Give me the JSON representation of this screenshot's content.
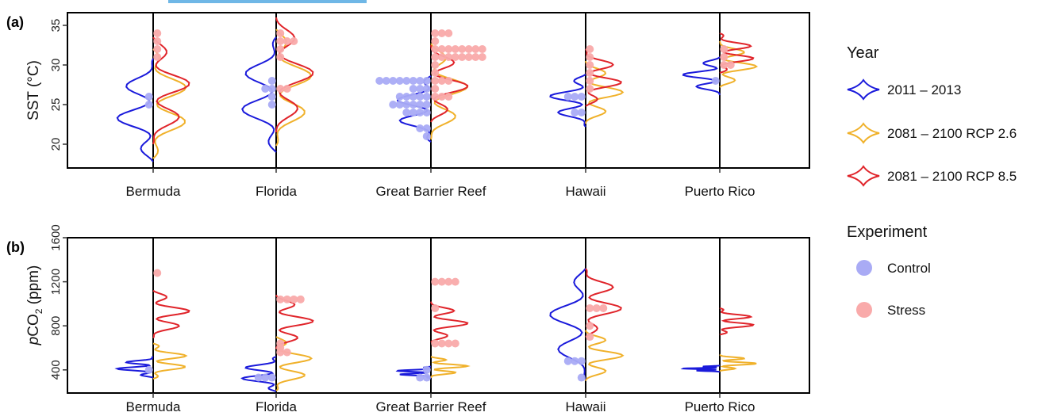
{
  "panels": [
    {
      "label": "(a)",
      "ylabel_main": "SST (°C)",
      "ylabel_sub": "",
      "ylabel_prefix": "",
      "ylim": [
        17,
        36.6
      ],
      "yticks": [
        20,
        25,
        30,
        35
      ],
      "ytick_labels": [
        "20",
        "25",
        "30",
        "35"
      ]
    },
    {
      "label": "(b)",
      "ylabel_prefix": "p",
      "ylabel_main": "CO",
      "ylabel_sub": "2",
      "ylabel_suffix": " (ppm)",
      "ylim": [
        190,
        1600
      ],
      "yticks": [
        400,
        800,
        1200,
        1600
      ],
      "ytick_labels": [
        "400",
        "800",
        "1200",
        "1600"
      ]
    }
  ],
  "legend": {
    "year_title": "Year",
    "year_items": [
      {
        "label": "2011 – 2013",
        "color": "#1a1adb"
      },
      {
        "label": "2081 – 2100 RCP 2.6",
        "color": "#f0b12a"
      },
      {
        "label": "2081 – 2100 RCP 8.5",
        "color": "#e0242a"
      }
    ],
    "experiment_title": "Experiment",
    "experiment_items": [
      {
        "label": "Control",
        "color": "#a9abf5"
      },
      {
        "label": "Stress",
        "color": "#f9aaaa"
      }
    ]
  },
  "chart_data": [
    {
      "type": "violin",
      "panel": "(a)",
      "categories": [
        "Bermuda",
        "Florida",
        "Great Barrier Reef",
        "Hawaii",
        "Puerto Rico"
      ],
      "ylabel": "SST (°C)",
      "ylim": [
        17,
        36.6
      ],
      "series": [
        {
          "name": "2011 – 2013",
          "side": "left",
          "color": "#1a1adb",
          "ranges": [
            [
              17.8,
              30.8
            ],
            [
              19.0,
              33.5
            ],
            [
              20.3,
              28.6
            ],
            [
              22.2,
              28.8
            ],
            [
              26.2,
              31.0
            ]
          ]
        },
        {
          "name": "2081 – 2100 RCP 2.6",
          "side": "right",
          "color": "#f0b12a",
          "ranges": [
            [
              18.2,
              32.0
            ],
            [
              19.8,
              34.5
            ],
            [
              20.6,
              32.7
            ],
            [
              22.6,
              30.5
            ],
            [
              27.2,
              33.0
            ]
          ]
        },
        {
          "name": "2081 – 2100 RCP 8.5",
          "side": "right",
          "color": "#e0242a",
          "ranges": [
            [
              20.0,
              33.5
            ],
            [
              21.5,
              36.0
            ],
            [
              22.8,
              32.5
            ],
            [
              24.8,
              32.0
            ],
            [
              29.0,
              34.0
            ]
          ]
        }
      ],
      "points": [
        {
          "experiment": "Control",
          "category": "Bermuda",
          "values": [
            26,
            25
          ]
        },
        {
          "experiment": "Stress",
          "category": "Bermuda",
          "values": [
            34,
            33,
            32,
            31
          ]
        },
        {
          "experiment": "Control",
          "category": "Florida",
          "values": [
            28,
            27,
            27,
            26,
            25
          ]
        },
        {
          "experiment": "Stress",
          "category": "Florida",
          "values": [
            34,
            33,
            33,
            33,
            32,
            31,
            27,
            27
          ]
        },
        {
          "experiment": "Control",
          "category": "Great Barrier Reef",
          "values": [
            28,
            28,
            28,
            28,
            28,
            28,
            28,
            28,
            27,
            27,
            27,
            26,
            26,
            26,
            26,
            26,
            25,
            25,
            25,
            25,
            25,
            25,
            24,
            24,
            24,
            24,
            22,
            22,
            21
          ]
        },
        {
          "experiment": "Stress",
          "category": "Great Barrier Reef",
          "values": [
            34,
            34,
            34,
            33,
            32,
            32,
            32,
            32,
            32,
            32,
            32,
            32,
            31,
            31,
            31,
            31,
            31,
            31,
            31,
            31,
            30,
            29,
            28,
            28,
            28,
            27,
            26,
            26,
            26
          ]
        },
        {
          "experiment": "Control",
          "category": "Hawaii",
          "values": [
            26,
            26,
            26,
            24,
            24
          ]
        },
        {
          "experiment": "Stress",
          "category": "Hawaii",
          "values": [
            32,
            31,
            30,
            29,
            28,
            27
          ]
        },
        {
          "experiment": "Control",
          "category": "Puerto Rico",
          "values": [
            28
          ]
        },
        {
          "experiment": "Stress",
          "category": "Puerto Rico",
          "values": [
            32,
            31,
            30,
            30
          ]
        }
      ]
    },
    {
      "type": "violin",
      "panel": "(b)",
      "categories": [
        "Bermuda",
        "Florida",
        "Great Barrier Reef",
        "Hawaii",
        "Puerto Rico"
      ],
      "ylabel": "pCO2 (ppm)",
      "ylim": [
        190,
        1600
      ],
      "series": [
        {
          "name": "2011 – 2013",
          "side": "left",
          "color": "#1a1adb",
          "ranges": [
            [
              330,
              520
            ],
            [
              205,
              520
            ],
            [
              325,
              430
            ],
            [
              310,
              1320
            ],
            [
              380,
              440
            ]
          ]
        },
        {
          "name": "2081 – 2100 RCP 2.6",
          "side": "right",
          "color": "#f0b12a",
          "ranges": [
            [
              320,
              640
            ],
            [
              210,
              700
            ],
            [
              330,
              520
            ],
            [
              300,
              760
            ],
            [
              390,
              540
            ]
          ]
        },
        {
          "name": "2081 – 2100 RCP 8.5",
          "side": "right",
          "color": "#e0242a",
          "ranges": [
            [
              690,
              1120
            ],
            [
              590,
              1080
            ],
            [
              650,
              1020
            ],
            [
              700,
              1320
            ],
            [
              720,
              960
            ]
          ]
        }
      ],
      "points": [
        {
          "experiment": "Control",
          "category": "Bermuda",
          "values": [
            400
          ]
        },
        {
          "experiment": "Stress",
          "category": "Bermuda",
          "values": [
            1280
          ]
        },
        {
          "experiment": "Control",
          "category": "Florida",
          "values": [
            330,
            330,
            330
          ]
        },
        {
          "experiment": "Stress",
          "category": "Florida",
          "values": [
            1040,
            1040,
            1040,
            1040,
            640,
            600,
            560,
            560
          ]
        },
        {
          "experiment": "Control",
          "category": "Great Barrier Reef",
          "values": [
            400,
            330,
            330
          ]
        },
        {
          "experiment": "Stress",
          "category": "Great Barrier Reef",
          "values": [
            1200,
            1200,
            1200,
            1200,
            960,
            640,
            640,
            640,
            640
          ]
        },
        {
          "experiment": "Control",
          "category": "Hawaii",
          "values": [
            480,
            480,
            480,
            330
          ]
        },
        {
          "experiment": "Stress",
          "category": "Hawaii",
          "values": [
            960,
            960,
            960,
            800,
            700
          ]
        }
      ]
    }
  ]
}
